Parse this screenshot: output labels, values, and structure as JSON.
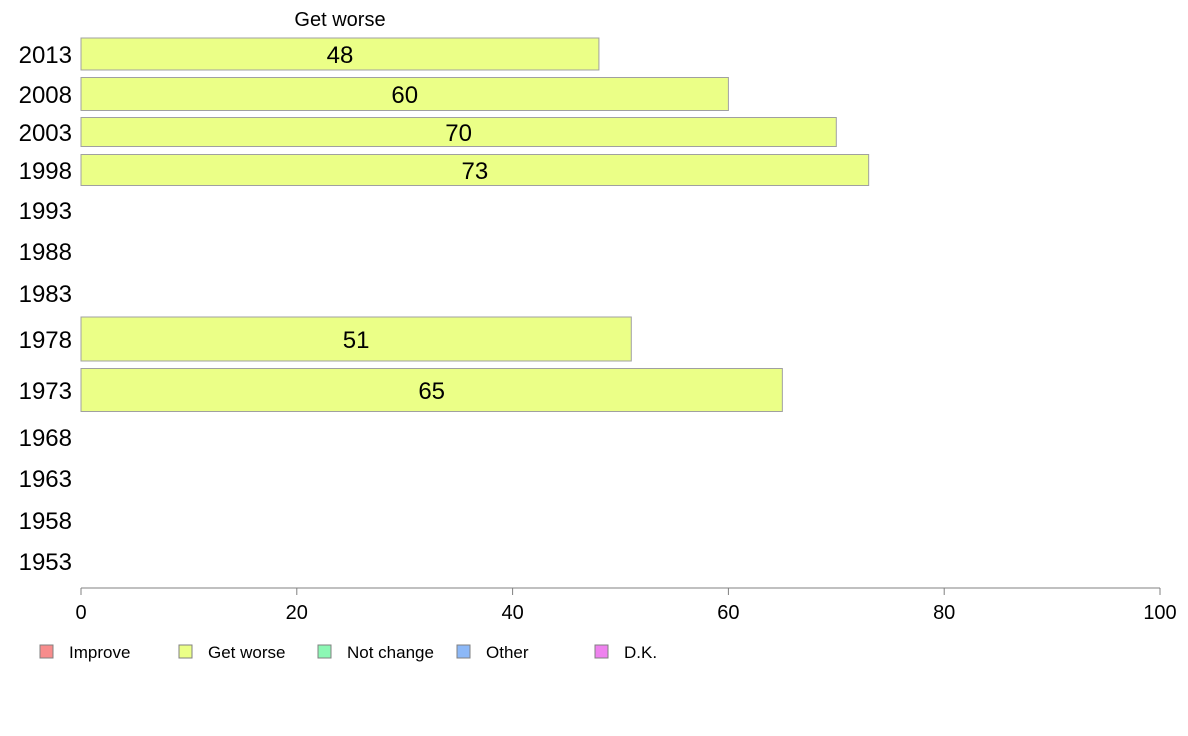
{
  "chart_data": {
    "type": "bar",
    "orientation": "horizontal",
    "title": "Get worse",
    "categories": [
      "2013",
      "2008",
      "2003",
      "1998",
      "1993",
      "1988",
      "1983",
      "1978",
      "1973",
      "1968",
      "1963",
      "1958",
      "1953"
    ],
    "series": [
      {
        "name": "Get worse",
        "color": "#ebff87",
        "values": [
          48,
          60,
          70,
          73,
          null,
          null,
          null,
          51,
          65,
          null,
          null,
          null,
          null
        ]
      }
    ],
    "xlim": [
      0,
      100
    ],
    "xticks": [
      0,
      20,
      40,
      60,
      80,
      100
    ],
    "xlabel": "",
    "ylabel": "",
    "grid": false,
    "legend_position": "bottom",
    "legend": [
      {
        "label": "Improve",
        "color": "#f78c8c"
      },
      {
        "label": "Get worse",
        "color": "#ebff87"
      },
      {
        "label": "Not change",
        "color": "#8cf7b4"
      },
      {
        "label": "Other",
        "color": "#8cb8f7"
      },
      {
        "label": "D.K.",
        "color": "#ee82ee"
      }
    ]
  }
}
